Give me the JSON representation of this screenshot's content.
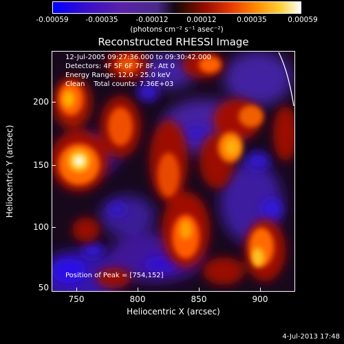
{
  "colorbar": {
    "ticks": [
      "-0.00059",
      "-0.00035",
      "-0.00012",
      "0.00012",
      "0.00035",
      "0.00059"
    ],
    "units": "(photons cm⁻² s⁻¹ asec⁻²)"
  },
  "title": "Reconstructed RHESSI Image",
  "info": {
    "time": "12-Jul-2005 09:27:36.000 to 09:30:42.000",
    "detectors": "Detectors: 4F 5F 6F 7F 8F, Att 0",
    "energy": "Energy Range: 12.0 - 25.0 keV",
    "clean": "Clean    Total counts: 7.36E+03",
    "peak": "Position of Peak = [754,152]"
  },
  "axes": {
    "xlabel": "Heliocentric X (arcsec)",
    "ylabel": "Heliocentric Y (arcsec)",
    "xticks": [
      "750",
      "800",
      "850",
      "900"
    ],
    "yticks": [
      "200",
      "150",
      "100",
      "50"
    ]
  },
  "timestamp": "4-Jul-2013 17:48",
  "colors": {
    "negative": "#3a10c8",
    "neutral": "#17081c",
    "positive_low": "#9a0f00",
    "positive_mid": "#ff8a00",
    "positive_high": "#ffffff"
  }
}
